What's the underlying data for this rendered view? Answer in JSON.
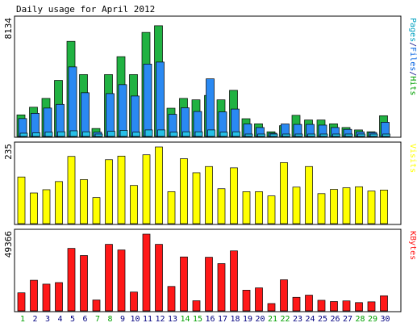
{
  "chart_data": {
    "type": "bar",
    "title": "Daily usage for April 2012",
    "days": [
      "1",
      "2",
      "3",
      "4",
      "5",
      "6",
      "7",
      "8",
      "9",
      "10",
      "11",
      "12",
      "13",
      "14",
      "15",
      "16",
      "17",
      "18",
      "19",
      "20",
      "21",
      "22",
      "23",
      "24",
      "25",
      "26",
      "27",
      "28",
      "29",
      "30"
    ],
    "weekend_days": [
      "1",
      "7",
      "8",
      "14",
      "15",
      "21",
      "22",
      "28",
      "29"
    ],
    "colors": {
      "hits": "#21b242",
      "files": "#2a89f2",
      "pages": "#26c0e7",
      "visits": "#ffff00",
      "kbytes": "#ff1818",
      "weekday_label": "#000080",
      "weekend_label": "#00a000",
      "pages_legend": "#00a0c0",
      "files_legend": "#0060e0",
      "hits_legend": "#00a000"
    },
    "panels": [
      {
        "id": "hits_files_pages",
        "max_label": "8134",
        "ymax": 8134,
        "legend": [
          {
            "text": "Pages",
            "color_key": "pages_legend"
          },
          {
            "text": "/",
            "color_key": "weekday_label"
          },
          {
            "text": "Files",
            "color_key": "files_legend"
          },
          {
            "text": "/",
            "color_key": "weekday_label"
          },
          {
            "text": "Hits",
            "color_key": "hits_legend"
          }
        ],
        "series": [
          {
            "name": "Hits",
            "values": [
              1520,
              2060,
              2680,
              3950,
              6700,
              4360,
              560,
              4360,
              5620,
              4360,
              7330,
              7800,
              1990,
              2680,
              2580,
              2890,
              2580,
              3250,
              1250,
              890,
              330,
              760,
              1490,
              1160,
              1160,
              890,
              630,
              460,
              330,
              1460
            ]
          },
          {
            "name": "Files",
            "values": [
              1260,
              1630,
              2000,
              2260,
              4900,
              3080,
              300,
              3020,
              3650,
              2850,
              5100,
              5240,
              1560,
              2020,
              1760,
              4060,
              1730,
              1930,
              880,
              630,
              230,
              880,
              850,
              850,
              800,
              630,
              500,
              330,
              280,
              1000
            ]
          },
          {
            "name": "Pages",
            "values": [
              230,
              260,
              300,
              330,
              400,
              330,
              100,
              360,
              430,
              300,
              460,
              460,
              300,
              330,
              330,
              460,
              300,
              330,
              130,
              100,
              60,
              130,
              130,
              130,
              100,
              100,
              100,
              60,
              60,
              130
            ]
          }
        ]
      },
      {
        "id": "visits",
        "max_label": "235",
        "ymax": 235,
        "legend": [
          {
            "text": "Visits",
            "color_key": "visits"
          }
        ],
        "series": [
          {
            "name": "Visits",
            "values": [
              143,
              94,
              104,
              129,
              206,
              135,
              80,
              196,
              207,
              117,
              211,
              235,
              98,
              199,
              156,
              175,
              107,
              171,
              98,
              98,
              85,
              187,
              112,
              175,
              92,
              105,
              110,
              113,
              100,
              103
            ]
          }
        ]
      },
      {
        "id": "kbytes",
        "max_label": "49366",
        "ymax": 49366,
        "legend": [
          {
            "text": "KBytes",
            "color_key": "kbytes"
          }
        ],
        "series": [
          {
            "name": "KBytes",
            "values": [
              11600,
              19700,
              17200,
              18200,
              40200,
              35600,
              7000,
              42800,
              39200,
              12100,
              49366,
              42800,
              15700,
              34700,
              6500,
              34500,
              30400,
              38600,
              13300,
              14800,
              4700,
              20000,
              8700,
              10100,
              6800,
              6000,
              6400,
              5300,
              5800,
              9700
            ]
          }
        ]
      }
    ]
  }
}
